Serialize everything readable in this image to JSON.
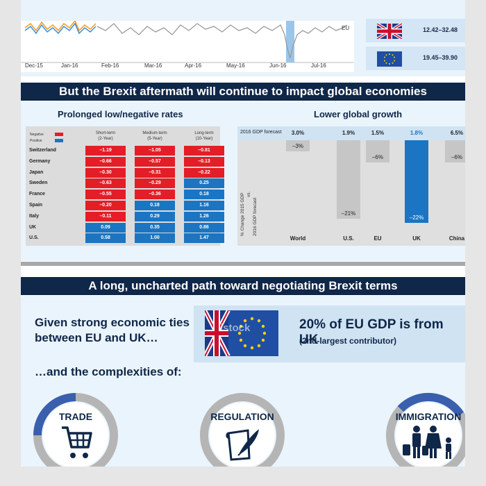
{
  "top": {
    "month_labels": [
      "Dec-15",
      "Jan-16",
      "Feb-16",
      "Mar-16",
      "Apr-16",
      "May-16",
      "Jun-16",
      "Jul-16"
    ],
    "series_label": "EU",
    "flag_cards": [
      {
        "flag": "uk-flag-icon",
        "range": "12.42–32.48"
      },
      {
        "flag": "eu-flag-icon",
        "range": "19.45–39.90"
      }
    ]
  },
  "banner1": "But the Brexit aftermath will continue to impact global economies",
  "rates": {
    "title": "Prolonged low/negative rates",
    "legend": {
      "negative": "Negative",
      "positive": "Positive"
    },
    "columns": [
      "Short-term\n(2-Year)",
      "Medium-term\n(5-Year)",
      "Long-term\n(10-Year)"
    ],
    "rows": [
      {
        "country": "Switzerland",
        "values": [
          "–1.19",
          "–1.05",
          "–0.81"
        ]
      },
      {
        "country": "Germany",
        "values": [
          "–0.66",
          "–0.57",
          "–0.13"
        ]
      },
      {
        "country": "Japan",
        "values": [
          "–0.30",
          "–0.31",
          "–0.22"
        ]
      },
      {
        "country": "Sweden",
        "values": [
          "–0.63",
          "–0.29",
          "0.25"
        ]
      },
      {
        "country": "France",
        "values": [
          "–0.55",
          "–0.36",
          "0.18"
        ]
      },
      {
        "country": "Spain",
        "values": [
          "–0.20",
          "0.18",
          "1.16"
        ]
      },
      {
        "country": "Italy",
        "values": [
          "–0.11",
          "0.29",
          "1.26"
        ]
      },
      {
        "country": "UK",
        "values": [
          "0.09",
          "0.35",
          "0.86"
        ]
      },
      {
        "country": "U.S.",
        "values": [
          "0.58",
          "1.00",
          "1.47"
        ]
      }
    ]
  },
  "growth": {
    "title": "Lower global growth",
    "forecast_label": "2016 GDP forecast",
    "axis_label_1": "% Change 2015 GDP",
    "axis_label_2": "vs.",
    "axis_label_3": "2016 GDP forecast"
  },
  "chart_data": {
    "type": "bar",
    "categories": [
      "World",
      "U.S.",
      "EU",
      "UK",
      "China"
    ],
    "forecast": [
      "3.0%",
      "1.9%",
      "1.5%",
      "1.8%",
      "6.5%"
    ],
    "values": [
      -3,
      -21,
      -6,
      -22,
      -6
    ],
    "value_labels": [
      "–3%",
      "–21%",
      "–6%",
      "–22%",
      "–6%"
    ],
    "highlight": "UK",
    "colors": {
      "default": "#c6c6c6",
      "highlight": "#1b75c2"
    }
  },
  "banner2": "A long, uncharted path toward negotiating Brexit terms",
  "ties_text": "Given strong economic ties between EU and UK…",
  "gdp_box": {
    "headline": "20% of EU GDP is from UK",
    "sub": "(2nd-largest contributor)",
    "watermark": "istock"
  },
  "complex_text": "…and the complexities of:",
  "topics": [
    {
      "label": "TRADE",
      "icon": "shopping-cart-icon"
    },
    {
      "label": "REGULATION",
      "icon": "document-quill-icon"
    },
    {
      "label": "IMMIGRATION",
      "icon": "family-luggage-icon"
    }
  ],
  "colors": {
    "navy": "#0f2748",
    "negative": "#e31e26",
    "positive": "#1b75c2",
    "light_blue": "#eaf4fc"
  }
}
